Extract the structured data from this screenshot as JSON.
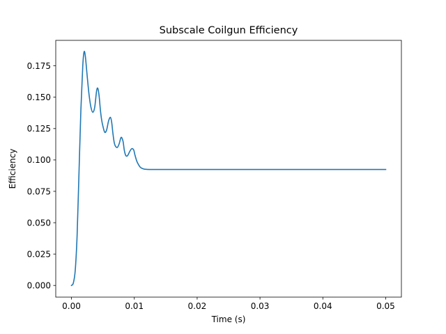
{
  "chart_data": {
    "type": "line",
    "title": "Subscale Coilgun Efficiency",
    "xlabel": "Time (s)",
    "ylabel": "Efficiency",
    "xlim": [
      -0.0025,
      0.0525
    ],
    "ylim": [
      -0.0093,
      0.1953
    ],
    "xticks": [
      0.0,
      0.01,
      0.02,
      0.03,
      0.04,
      0.05
    ],
    "xtick_labels": [
      "0.00",
      "0.01",
      "0.02",
      "0.03",
      "0.04",
      "0.05"
    ],
    "yticks": [
      0.0,
      0.025,
      0.05,
      0.075,
      0.1,
      0.125,
      0.15,
      0.175
    ],
    "ytick_labels": [
      "0.000",
      "0.025",
      "0.050",
      "0.075",
      "0.100",
      "0.125",
      "0.150",
      "0.175"
    ],
    "grid": false,
    "legend": "none",
    "series": [
      {
        "color": "#1f77b4",
        "x": [
          0.0,
          0.0003,
          0.0006,
          0.0009,
          0.0012,
          0.0015,
          0.0018,
          0.002,
          0.0022,
          0.0025,
          0.0028,
          0.0031,
          0.0034,
          0.0037,
          0.004,
          0.0042,
          0.0044,
          0.0046,
          0.0048,
          0.005,
          0.0053,
          0.0056,
          0.0059,
          0.0062,
          0.0064,
          0.0066,
          0.0068,
          0.007,
          0.0073,
          0.0076,
          0.0079,
          0.0082,
          0.0084,
          0.0086,
          0.0088,
          0.009,
          0.0093,
          0.0096,
          0.0099,
          0.0101,
          0.0104,
          0.0107,
          0.011,
          0.0115,
          0.012,
          0.013,
          0.014,
          0.016,
          0.02,
          0.03,
          0.04,
          0.05
        ],
        "values": [
          0.0,
          0.002,
          0.012,
          0.04,
          0.09,
          0.14,
          0.175,
          0.186,
          0.183,
          0.167,
          0.152,
          0.142,
          0.138,
          0.142,
          0.155,
          0.157,
          0.151,
          0.14,
          0.132,
          0.127,
          0.122,
          0.124,
          0.131,
          0.134,
          0.13,
          0.121,
          0.114,
          0.111,
          0.11,
          0.113,
          0.118,
          0.115,
          0.108,
          0.104,
          0.103,
          0.104,
          0.107,
          0.109,
          0.108,
          0.104,
          0.099,
          0.096,
          0.094,
          0.0928,
          0.0925,
          0.0924,
          0.0924,
          0.0924,
          0.0924,
          0.0924,
          0.0924,
          0.0924
        ]
      }
    ]
  }
}
